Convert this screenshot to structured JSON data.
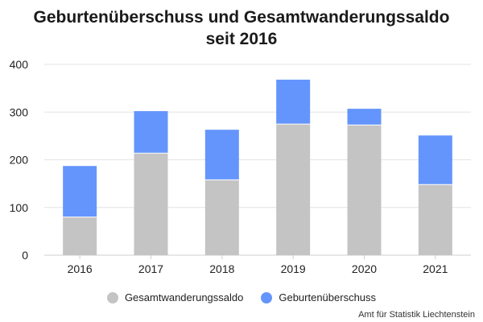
{
  "chart_data": {
    "type": "bar",
    "stacked": true,
    "title_lines": [
      "Geburtenüberschuss und Gesamtwanderungssaldo",
      "seit 2016"
    ],
    "categories": [
      "2016",
      "2017",
      "2018",
      "2019",
      "2020",
      "2021"
    ],
    "series": [
      {
        "name": "Gesamtwanderungssaldo",
        "values": [
          80,
          214,
          158,
          275,
          273,
          148
        ],
        "color": "#c4c4c4"
      },
      {
        "name": "Geburtenüberschuss",
        "values": [
          107,
          88,
          105,
          93,
          34,
          103
        ],
        "color": "#6495fc"
      }
    ],
    "ylim": [
      0,
      400
    ],
    "yticks": [
      0,
      100,
      200,
      300,
      400
    ],
    "grid": true,
    "legend_position": "bottom-center",
    "xlabel": "",
    "ylabel": ""
  },
  "credit": "Amt für Statistik Liechtenstein"
}
